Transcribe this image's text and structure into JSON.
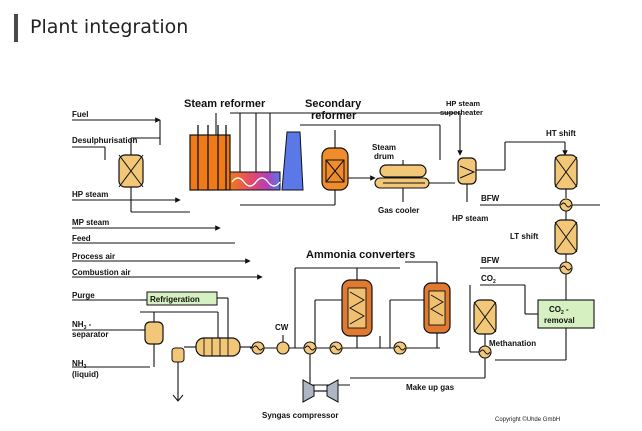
{
  "header": {
    "title": "Plant integration"
  },
  "labels": {
    "fuel": "Fuel",
    "desulph": "Desulphurisation",
    "hp_steam_left": "HP steam",
    "mp_steam": "MP steam",
    "feed": "Feed",
    "process_air": "Process air",
    "combustion_air": "Combustion air",
    "purge": "Purge",
    "nh3_sep_1": "NH",
    "nh3_sep_sub": "3",
    "nh3_sep_2": " -",
    "nh3_sep_3": "separator",
    "nh3_liq_1": "NH",
    "nh3_liq_sub": "3",
    "nh3_liq_2": "(liquid)",
    "steam_reformer": "Steam reformer",
    "secondary_1": "Secondary",
    "secondary_2": "reformer",
    "hp_superheater_1": "HP steam",
    "hp_superheater_2": "superheater",
    "hp_shift": "HT shift",
    "steam_drum_1": "Steam",
    "steam_drum_2": "drum",
    "gas_cooler": "Gas cooler",
    "bfw_1": "BFW",
    "hp_steam_right": "HP steam",
    "lt_shift": "LT shift",
    "ammonia_converters": "Ammonia converters",
    "bfw_2": "BFW",
    "co2_1": "CO",
    "co2_sub": "2",
    "co2_removal_1": "CO",
    "co2_removal_sub": "2",
    "co2_removal_2": " -",
    "co2_removal_3": "removal",
    "refrigeration": "Refrigeration",
    "cw": "CW",
    "methanation": "Methanation",
    "make_up_gas": "Make up gas",
    "syngas_compressor": "Syngas compressor",
    "copyright": "Copyright ©Uhde GmbH"
  },
  "colors": {
    "vessel_fill": "#f2c878",
    "reformer_orange": "#f07a18",
    "reformer_hot": "#d4307a",
    "reformer_blue": "#5a78e8",
    "secondary_fill": "#f08c2a",
    "refrigeration_fill": "#d6f0c2",
    "co2_fill": "#d6f0c2",
    "converter_fill": "#e07a30",
    "converter_inner": "#f0c070",
    "line": "#111111"
  }
}
